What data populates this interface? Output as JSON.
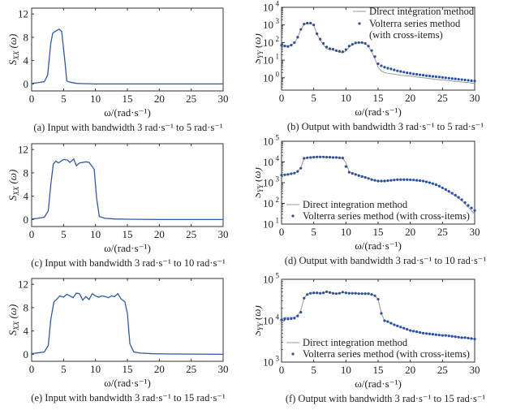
{
  "colors": {
    "input_line": "#2f59ad",
    "direct_line": "#9a9a9a",
    "volterra_dots": "#2a4fa3",
    "axes": "#333333"
  },
  "chart_data": [
    {
      "id": "a",
      "type": "line",
      "scale": "linear",
      "caption": "(a) Input with bandwidth 3 rad·s⁻¹ to 5 rad·s⁻¹",
      "xlabel": "ω/(rad·s⁻¹)",
      "ylabel": {
        "main": "S",
        "sub": "XX",
        "arg": " (ω)"
      },
      "xlim": [
        0,
        30
      ],
      "ylim": [
        -1.2,
        13
      ],
      "xticks": [
        0,
        5,
        10,
        15,
        20,
        25,
        30
      ],
      "yticks": [
        0,
        4,
        8,
        12
      ],
      "series": [
        {
          "style": "line",
          "x": [
            0,
            1,
            2,
            2.5,
            3,
            3.3,
            3.7,
            4.3,
            4.7,
            5.2,
            5.5,
            6,
            7,
            8,
            10,
            30
          ],
          "y": [
            0.1,
            0.2,
            0.4,
            1.5,
            7,
            8.7,
            9.0,
            9.4,
            9.0,
            4.0,
            0.5,
            0.3,
            0.1,
            0.05,
            0,
            0
          ]
        }
      ]
    },
    {
      "id": "b",
      "type": "line",
      "scale": "log",
      "caption": "(b) Output with bandwidth 3 rad·s⁻¹ to 5 rad·s⁻¹",
      "xlabel": "ω/(rad·s⁻¹)",
      "ylabel": {
        "main": "S",
        "sub": "YY",
        "arg": " (ω)"
      },
      "xlim": [
        0,
        30
      ],
      "ylim": [
        0.2,
        10000
      ],
      "xticks": [
        0,
        5,
        10,
        15,
        20,
        25,
        30
      ],
      "yticks_exp": [
        0,
        1,
        2,
        3,
        4
      ],
      "legend": {
        "placement": "top-right",
        "entries": [
          "Direct integration method",
          "Volterra series method",
          "(with cross-items)"
        ]
      },
      "x": [
        0,
        0.5,
        1,
        1.5,
        2,
        2.5,
        3,
        3.5,
        4,
        4.5,
        5,
        5.5,
        6,
        6.5,
        7,
        7.5,
        8,
        8.5,
        9,
        9.5,
        10,
        10.5,
        11,
        11.5,
        12,
        12.5,
        13,
        13.5,
        14,
        14.5,
        15,
        15.5,
        16,
        16.5,
        17,
        17.5,
        18,
        18.5,
        19,
        19.5,
        20,
        20.5,
        21,
        21.5,
        22,
        22.5,
        23,
        23.5,
        24,
        24.5,
        25,
        25.5,
        26,
        26.5,
        27,
        27.5,
        28,
        28.5,
        29,
        29.5,
        30
      ],
      "series": [
        {
          "name": "Direct integration method",
          "style": "line",
          "y": [
            75,
            68,
            63,
            70,
            95,
            190,
            560,
            1100,
            1200,
            1200,
            950,
            300,
            140,
            75,
            45,
            40,
            38,
            32,
            28,
            26,
            34,
            55,
            75,
            92,
            98,
            98,
            88,
            60,
            30,
            12,
            4.0,
            2.4,
            2.0,
            1.8,
            1.7,
            1.6,
            1.5,
            1.4,
            1.35,
            1.3,
            1.25,
            1.2,
            1.1,
            1.05,
            1.0,
            0.95,
            0.9,
            0.86,
            0.82,
            0.78,
            0.75,
            0.72,
            0.69,
            0.66,
            0.63,
            0.61,
            0.58,
            0.56,
            0.54,
            0.51,
            0.48
          ]
        },
        {
          "name": "Volterra series method (with cross-items)",
          "style": "dots",
          "y": [
            71,
            63,
            60,
            71,
            100,
            200,
            560,
            1120,
            1260,
            1260,
            1000,
            316,
            158,
            89,
            56,
            45,
            42,
            35,
            32,
            30,
            40,
            63,
            79,
            95,
            100,
            100,
            89,
            63,
            35,
            16,
            6.3,
            4.8,
            4.0,
            3.5,
            3.2,
            2.8,
            2.5,
            2.3,
            2.1,
            1.9,
            1.8,
            1.66,
            1.58,
            1.48,
            1.41,
            1.32,
            1.26,
            1.2,
            1.15,
            1.1,
            1.05,
            1.0,
            0.95,
            0.91,
            0.87,
            0.83,
            0.79,
            0.76,
            0.72,
            0.69,
            0.66
          ]
        }
      ]
    },
    {
      "id": "c",
      "type": "line",
      "scale": "linear",
      "caption": "(c) Input with bandwidth 3 rad·s⁻¹ to 10 rad·s⁻¹",
      "xlabel": "ω/(rad·s⁻¹)",
      "ylabel": {
        "main": "S",
        "sub": "XX",
        "arg": " (ω)"
      },
      "xlim": [
        0,
        30
      ],
      "ylim": [
        -1.2,
        13
      ],
      "xticks": [
        0,
        5,
        10,
        15,
        20,
        25,
        30
      ],
      "yticks": [
        0,
        4,
        8,
        12
      ],
      "series": [
        {
          "style": "line",
          "x": [
            0,
            1,
            2,
            2.6,
            3,
            3.4,
            3.8,
            4.2,
            5,
            5.6,
            6,
            6.6,
            7,
            7.5,
            8.5,
            9,
            9.8,
            10.2,
            10.6,
            11.5,
            13,
            15,
            20,
            30
          ],
          "y": [
            0.1,
            0.2,
            0.4,
            1.5,
            6,
            9.5,
            10,
            9.7,
            10.3,
            10.2,
            9.8,
            10.4,
            9.2,
            9.7,
            9.9,
            9.8,
            8.6,
            3.5,
            0.5,
            0.2,
            0.1,
            0.05,
            0,
            0
          ]
        }
      ]
    },
    {
      "id": "d",
      "type": "line",
      "scale": "log",
      "caption": "(d) Output with bandwidth 3 rad·s⁻¹ to 10 rad·s⁻¹",
      "xlabel": "ω/(rad·s⁻¹)",
      "ylabel": {
        "main": "S",
        "sub": "YY",
        "arg": " (ω)"
      },
      "xlim": [
        0,
        30
      ],
      "ylim": [
        10,
        100000
      ],
      "xticks": [
        0,
        5,
        10,
        15,
        20,
        25,
        30
      ],
      "yticks_exp": [
        1,
        2,
        3,
        4,
        5
      ],
      "legend": {
        "placement": "bottom-left",
        "entries": [
          "Direct integration method",
          "Volterra series method (with cross-items)"
        ]
      },
      "x": [
        0,
        0.5,
        1,
        1.5,
        2,
        2.5,
        3,
        3.5,
        4,
        4.5,
        5,
        5.5,
        6,
        6.5,
        7,
        7.5,
        8,
        8.5,
        9,
        9.5,
        10,
        10.5,
        11,
        11.5,
        12,
        12.5,
        13,
        13.5,
        14,
        14.5,
        15,
        15.5,
        16,
        16.5,
        17,
        17.5,
        18,
        18.5,
        19,
        19.5,
        20,
        20.5,
        21,
        21.5,
        22,
        22.5,
        23,
        23.5,
        24,
        24.5,
        25,
        25.5,
        26,
        26.5,
        27,
        27.5,
        28,
        28.5,
        29,
        29.5,
        30
      ],
      "series": [
        {
          "name": "Direct integration method",
          "style": "line",
          "y": [
            2300,
            2400,
            2500,
            2700,
            2900,
            3400,
            5500,
            15000,
            16000,
            16500,
            17000,
            17500,
            17500,
            17500,
            17000,
            17000,
            16500,
            16500,
            16000,
            15500,
            9000,
            3400,
            2900,
            2600,
            2300,
            2050,
            1850,
            1650,
            1450,
            1300,
            1200,
            1200,
            1200,
            1250,
            1300,
            1350,
            1400,
            1400,
            1400,
            1400,
            1380,
            1350,
            1300,
            1250,
            1200,
            1100,
            1000,
            900,
            790,
            670,
            550,
            450,
            360,
            290,
            230,
            180,
            135,
            95,
            65,
            45,
            30
          ]
        },
        {
          "name": "Volterra series method (with cross-items)",
          "style": "dots",
          "y": [
            2300,
            2400,
            2500,
            2700,
            2900,
            3500,
            5000,
            15000,
            16000,
            16500,
            17000,
            17500,
            17500,
            17500,
            17000,
            17000,
            16500,
            16500,
            16000,
            15500,
            6000,
            3200,
            2800,
            2500,
            2200,
            2000,
            1800,
            1600,
            1400,
            1300,
            1200,
            1200,
            1200,
            1250,
            1300,
            1350,
            1400,
            1400,
            1400,
            1400,
            1380,
            1350,
            1300,
            1250,
            1200,
            1100,
            1000,
            900,
            800,
            680,
            560,
            470,
            380,
            310,
            250,
            195,
            150,
            110,
            80,
            60,
            45
          ]
        }
      ]
    },
    {
      "id": "e",
      "type": "line",
      "scale": "linear",
      "caption": "(e) Input with bandwidth 3 rad·s⁻¹ to 15 rad·s⁻¹",
      "xlabel": "ω/(rad·s⁻¹)",
      "ylabel": {
        "main": "S",
        "sub": "XX",
        "arg": " (ω)"
      },
      "xlim": [
        0,
        30
      ],
      "ylim": [
        -1.2,
        13
      ],
      "xticks": [
        0,
        5,
        10,
        15,
        20,
        25,
        30
      ],
      "yticks": [
        0,
        4,
        8,
        12
      ],
      "series": [
        {
          "style": "line",
          "x": [
            0,
            2,
            2.6,
            3,
            3.5,
            4,
            4.4,
            5,
            5.5,
            6.5,
            7,
            7.5,
            8,
            8.5,
            9,
            9.5,
            10,
            10.5,
            11,
            11.5,
            12,
            12.5,
            13,
            13.5,
            14,
            14.6,
            15,
            15.4,
            16,
            17,
            19,
            22,
            30
          ],
          "y": [
            0.1,
            0.4,
            1.5,
            6,
            9,
            9.5,
            10,
            9.8,
            10.3,
            9.7,
            10.5,
            10.4,
            9.3,
            9.9,
            9.4,
            10.4,
            10,
            9.8,
            10,
            9.9,
            9.7,
            10,
            9.9,
            10.4,
            9.5,
            9.0,
            7,
            1.8,
            0.4,
            0.2,
            0.1,
            0.05,
            0
          ]
        }
      ]
    },
    {
      "id": "f",
      "type": "line",
      "scale": "log",
      "caption": "(f) Output with bandwidth 3 rad·s⁻¹ to 15 rad·s⁻¹",
      "xlabel": "ω/(rad·s⁻¹)",
      "ylabel": {
        "main": "S",
        "sub": "YY",
        "arg": " (ω)"
      },
      "xlim": [
        0,
        30
      ],
      "ylim": [
        1000,
        100000
      ],
      "xticks": [
        0,
        5,
        10,
        15,
        20,
        25,
        30
      ],
      "yticks_exp": [
        3,
        4,
        5
      ],
      "legend": {
        "placement": "bottom-left",
        "entries": [
          "Direct integration method",
          "Volterra series method (with cross-items)"
        ]
      },
      "x": [
        0,
        0.5,
        1,
        1.5,
        2,
        2.5,
        3,
        3.5,
        4,
        4.5,
        5,
        5.5,
        6,
        6.5,
        7,
        7.5,
        8,
        8.5,
        9,
        9.5,
        10,
        10.5,
        11,
        11.5,
        12,
        12.5,
        13,
        13.5,
        14,
        14.5,
        15,
        15.5,
        16,
        16.5,
        17,
        17.5,
        18,
        18.5,
        19,
        19.5,
        20,
        20.5,
        21,
        21.5,
        22,
        22.5,
        23,
        23.5,
        24,
        24.5,
        25,
        25.5,
        26,
        26.5,
        27,
        27.5,
        28,
        28.5,
        29,
        29.5,
        30
      ],
      "series": [
        {
          "name": "Direct integration method",
          "style": "line",
          "y": [
            11000,
            12000,
            12000,
            12000,
            12000,
            13500,
            18000,
            35000,
            43000,
            46000,
            47000,
            47000,
            46000,
            47000,
            50000,
            48000,
            46000,
            45000,
            46000,
            49000,
            47000,
            46000,
            46000,
            46000,
            45000,
            45000,
            45000,
            45000,
            43000,
            40000,
            33000,
            15000,
            10000,
            9500,
            8700,
            8000,
            7500,
            7000,
            6600,
            6200,
            5800,
            5600,
            5400,
            5200,
            5000,
            4900,
            4800,
            4700,
            4600,
            4500,
            4500,
            4500,
            4300,
            4200,
            4100,
            3900,
            3900,
            3900,
            3800,
            3700,
            3600
          ]
        },
        {
          "name": "Volterra series method (with cross-items)",
          "style": "dots",
          "y": [
            10500,
            11000,
            11000,
            11200,
            11500,
            13000,
            16000,
            35000,
            43000,
            46000,
            47000,
            47000,
            46000,
            47000,
            50000,
            48000,
            46000,
            45000,
            46000,
            49000,
            47000,
            46000,
            46000,
            46000,
            45000,
            45000,
            45000,
            45000,
            43000,
            40000,
            33000,
            15000,
            10000,
            9500,
            8700,
            8000,
            7500,
            7000,
            6600,
            6200,
            5800,
            5600,
            5400,
            5200,
            5000,
            4900,
            4800,
            4700,
            4600,
            4500,
            4400,
            4400,
            4300,
            4200,
            4100,
            4000,
            3900,
            3900,
            3800,
            3700,
            3600
          ]
        }
      ]
    }
  ]
}
